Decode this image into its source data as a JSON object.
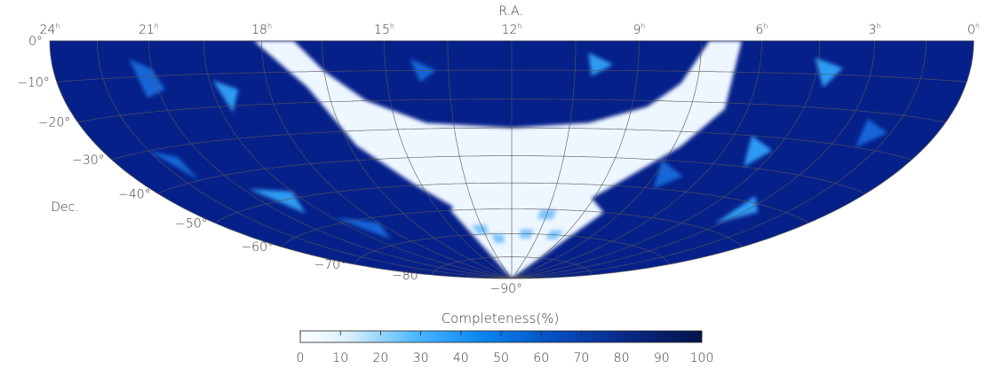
{
  "map": {
    "ra_axis_title": "R.A.",
    "dec_axis_title": "Dec.",
    "ra_labels": [
      {
        "hour": 24,
        "text": "24",
        "sup": "h"
      },
      {
        "hour": 21,
        "text": "21",
        "sup": "h"
      },
      {
        "hour": 18,
        "text": "18",
        "sup": "h"
      },
      {
        "hour": 15,
        "text": "15",
        "sup": "h"
      },
      {
        "hour": 12,
        "text": "12",
        "sup": "h"
      },
      {
        "hour": 9,
        "text": "9",
        "sup": "h"
      },
      {
        "hour": 6,
        "text": "6",
        "sup": "h"
      },
      {
        "hour": 3,
        "text": "3",
        "sup": "h"
      },
      {
        "hour": 0,
        "text": "0",
        "sup": "h"
      }
    ],
    "dec_labels": [
      {
        "dec": 0,
        "text": "0°"
      },
      {
        "dec": -10,
        "text": "−10°"
      },
      {
        "dec": -20,
        "text": "−20°"
      },
      {
        "dec": -30,
        "text": "−30°"
      },
      {
        "dec": -40,
        "text": "−40°"
      },
      {
        "dec": -50,
        "text": "−50°"
      },
      {
        "dec": -60,
        "text": "−60°"
      },
      {
        "dec": -70,
        "text": "−70°"
      },
      {
        "dec": -80,
        "text": "−80°"
      },
      {
        "dec": -90,
        "text": "−90°"
      }
    ],
    "projection": "hammer-aitoff",
    "ra_range_hours": [
      0,
      24
    ],
    "dec_range_deg": [
      -90,
      0
    ],
    "grid": true
  },
  "colorbar": {
    "title": "Completeness(%)",
    "ticks": [
      "0",
      "10",
      "20",
      "30",
      "40",
      "50",
      "60",
      "70",
      "80",
      "90",
      "100"
    ],
    "range": [
      0,
      100
    ],
    "colors": [
      "#ffffff",
      "#a8dcff",
      "#0aa0ff",
      "#0063d1",
      "#0a2a8a",
      "#03124a"
    ]
  },
  "colors": {
    "low_fill": "#eef7ff",
    "mid_fill": "#1e88e5",
    "high_fill": "#06208a",
    "grid": "#444444"
  }
}
